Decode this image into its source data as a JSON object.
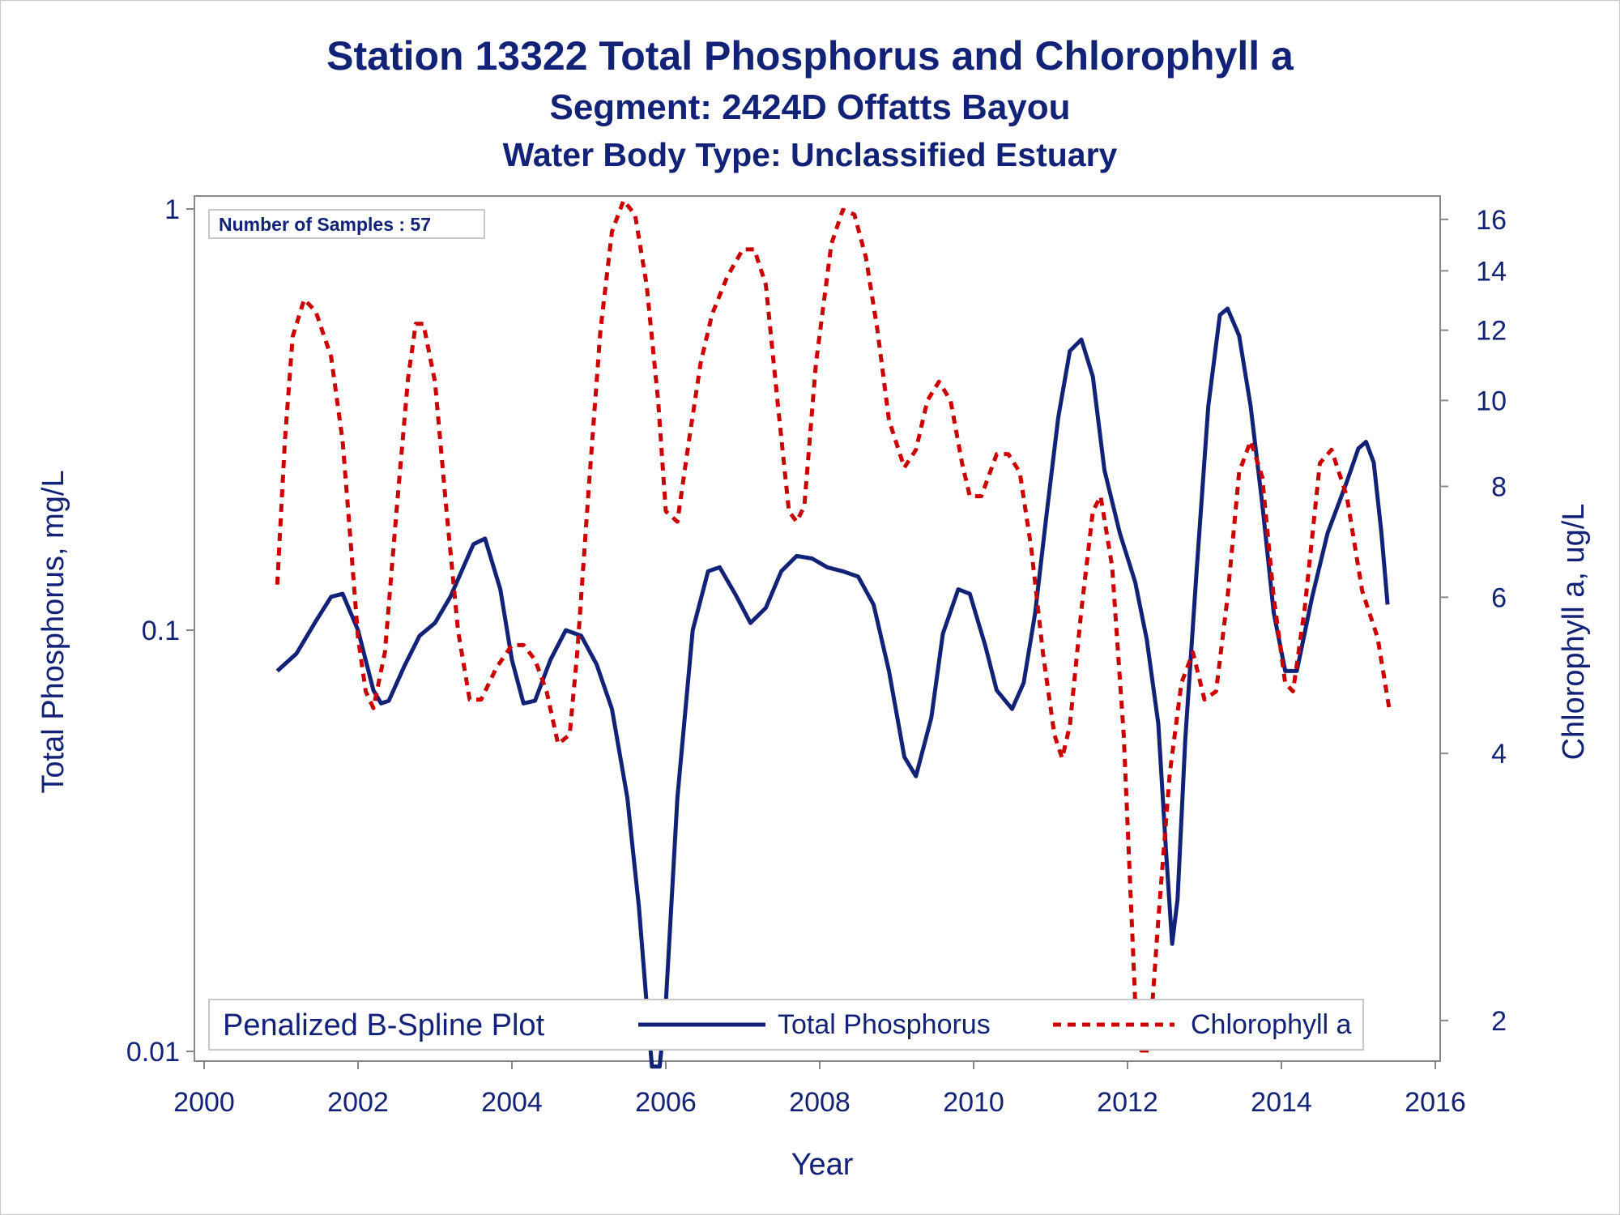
{
  "chart_data": {
    "type": "line",
    "title": "Station 13322  Total Phosphorus and Chlorophyll a",
    "subtitle": "Segment: 2424D  Offatts Bayou",
    "subtitle2": "Water Body Type: Unclassified Estuary",
    "xlabel": "Year",
    "ylabel_left": "Total Phosphorus, mg/L",
    "ylabel_right": "Chlorophyll a, ug/L",
    "xlim": [
      2000,
      2016
    ],
    "x_ticks": [
      "2000",
      "2002",
      "2004",
      "2006",
      "2008",
      "2010",
      "2012",
      "2014",
      "2016"
    ],
    "y_left_scale": "log",
    "y_left_lim": [
      0.01,
      1
    ],
    "y_left_ticks": [
      "0.01",
      "0.1",
      "1"
    ],
    "y_right_scale": "log",
    "y_right_lim": [
      1.8,
      17
    ],
    "y_right_ticks": [
      "2",
      "4",
      "6",
      "8",
      "10",
      "12",
      "14",
      "16"
    ],
    "annotation": "Number of Samples : 57",
    "legend_title": "Penalized B-Spline Plot",
    "legend_position": "bottom-inside",
    "grid": false,
    "series": [
      {
        "name": "Total Phosphorus",
        "axis": "left",
        "color": "#112277",
        "style": "solid",
        "points": [
          [
            2000.95,
            0.08
          ],
          [
            2001.2,
            0.088
          ],
          [
            2001.45,
            0.105
          ],
          [
            2001.65,
            0.12
          ],
          [
            2001.8,
            0.122
          ],
          [
            2002.0,
            0.1
          ],
          [
            2002.2,
            0.072
          ],
          [
            2002.3,
            0.067
          ],
          [
            2002.4,
            0.068
          ],
          [
            2002.6,
            0.082
          ],
          [
            2002.8,
            0.097
          ],
          [
            2003.0,
            0.104
          ],
          [
            2003.2,
            0.12
          ],
          [
            2003.5,
            0.16
          ],
          [
            2003.65,
            0.165
          ],
          [
            2003.85,
            0.125
          ],
          [
            2004.0,
            0.085
          ],
          [
            2004.15,
            0.067
          ],
          [
            2004.3,
            0.068
          ],
          [
            2004.5,
            0.085
          ],
          [
            2004.7,
            0.1
          ],
          [
            2004.9,
            0.097
          ],
          [
            2005.1,
            0.083
          ],
          [
            2005.3,
            0.065
          ],
          [
            2005.5,
            0.04
          ],
          [
            2005.65,
            0.022
          ],
          [
            2005.75,
            0.013
          ],
          [
            2005.82,
            0.0092
          ],
          [
            2005.92,
            0.0092
          ],
          [
            2006.0,
            0.013
          ],
          [
            2006.15,
            0.04
          ],
          [
            2006.35,
            0.1
          ],
          [
            2006.55,
            0.138
          ],
          [
            2006.7,
            0.141
          ],
          [
            2006.9,
            0.122
          ],
          [
            2007.1,
            0.104
          ],
          [
            2007.3,
            0.113
          ],
          [
            2007.5,
            0.138
          ],
          [
            2007.7,
            0.15
          ],
          [
            2007.9,
            0.148
          ],
          [
            2008.1,
            0.141
          ],
          [
            2008.3,
            0.138
          ],
          [
            2008.5,
            0.134
          ],
          [
            2008.7,
            0.115
          ],
          [
            2008.9,
            0.08
          ],
          [
            2009.1,
            0.05
          ],
          [
            2009.25,
            0.045
          ],
          [
            2009.45,
            0.062
          ],
          [
            2009.6,
            0.098
          ],
          [
            2009.8,
            0.125
          ],
          [
            2009.95,
            0.122
          ],
          [
            2010.15,
            0.092
          ],
          [
            2010.3,
            0.072
          ],
          [
            2010.5,
            0.065
          ],
          [
            2010.65,
            0.075
          ],
          [
            2010.8,
            0.11
          ],
          [
            2010.95,
            0.19
          ],
          [
            2011.1,
            0.32
          ],
          [
            2011.25,
            0.46
          ],
          [
            2011.4,
            0.49
          ],
          [
            2011.55,
            0.4
          ],
          [
            2011.7,
            0.24
          ],
          [
            2011.9,
            0.17
          ],
          [
            2012.1,
            0.13
          ],
          [
            2012.25,
            0.095
          ],
          [
            2012.4,
            0.06
          ],
          [
            2012.5,
            0.03
          ],
          [
            2012.58,
            0.018
          ],
          [
            2012.65,
            0.023
          ],
          [
            2012.75,
            0.055
          ],
          [
            2012.9,
            0.14
          ],
          [
            2013.05,
            0.34
          ],
          [
            2013.2,
            0.56
          ],
          [
            2013.3,
            0.58
          ],
          [
            2013.45,
            0.5
          ],
          [
            2013.6,
            0.34
          ],
          [
            2013.75,
            0.2
          ],
          [
            2013.9,
            0.11
          ],
          [
            2014.05,
            0.08
          ],
          [
            2014.2,
            0.08
          ],
          [
            2014.4,
            0.12
          ],
          [
            2014.6,
            0.17
          ],
          [
            2014.85,
            0.225
          ],
          [
            2015.0,
            0.27
          ],
          [
            2015.1,
            0.28
          ],
          [
            2015.2,
            0.25
          ],
          [
            2015.3,
            0.17
          ],
          [
            2015.38,
            0.115
          ]
        ]
      },
      {
        "name": "Chlorophyll a",
        "axis": "right",
        "color": "#cc0000",
        "style": "dashed",
        "points": [
          [
            2000.95,
            6.2
          ],
          [
            2001.05,
            9.0
          ],
          [
            2001.15,
            11.8
          ],
          [
            2001.3,
            13.0
          ],
          [
            2001.45,
            12.6
          ],
          [
            2001.65,
            11.2
          ],
          [
            2001.8,
            9.0
          ],
          [
            2001.9,
            7.0
          ],
          [
            2002.0,
            5.4
          ],
          [
            2002.1,
            4.7
          ],
          [
            2002.2,
            4.5
          ],
          [
            2002.35,
            5.2
          ],
          [
            2002.5,
            7.5
          ],
          [
            2002.65,
            10.6
          ],
          [
            2002.75,
            12.2
          ],
          [
            2002.85,
            12.2
          ],
          [
            2003.0,
            10.5
          ],
          [
            2003.15,
            7.5
          ],
          [
            2003.3,
            5.5
          ],
          [
            2003.45,
            4.6
          ],
          [
            2003.6,
            4.6
          ],
          [
            2003.8,
            5.0
          ],
          [
            2004.0,
            5.3
          ],
          [
            2004.15,
            5.3
          ],
          [
            2004.3,
            5.1
          ],
          [
            2004.45,
            4.7
          ],
          [
            2004.6,
            4.1
          ],
          [
            2004.75,
            4.2
          ],
          [
            2004.85,
            5.2
          ],
          [
            2005.0,
            8.0
          ],
          [
            2005.15,
            12.0
          ],
          [
            2005.3,
            15.5
          ],
          [
            2005.45,
            16.8
          ],
          [
            2005.6,
            16.2
          ],
          [
            2005.75,
            13.5
          ],
          [
            2005.9,
            10.0
          ],
          [
            2006.0,
            7.5
          ],
          [
            2006.15,
            7.3
          ],
          [
            2006.3,
            9.0
          ],
          [
            2006.45,
            11.0
          ],
          [
            2006.6,
            12.5
          ],
          [
            2006.8,
            13.8
          ],
          [
            2007.0,
            14.8
          ],
          [
            2007.15,
            14.8
          ],
          [
            2007.3,
            13.5
          ],
          [
            2007.45,
            10.0
          ],
          [
            2007.6,
            7.5
          ],
          [
            2007.7,
            7.3
          ],
          [
            2007.8,
            7.6
          ],
          [
            2007.95,
            11.0
          ],
          [
            2008.15,
            15.0
          ],
          [
            2008.3,
            16.4
          ],
          [
            2008.45,
            16.2
          ],
          [
            2008.6,
            14.5
          ],
          [
            2008.75,
            12.0
          ],
          [
            2008.9,
            9.5
          ],
          [
            2009.1,
            8.4
          ],
          [
            2009.25,
            8.8
          ],
          [
            2009.4,
            10.0
          ],
          [
            2009.55,
            10.5
          ],
          [
            2009.7,
            10.0
          ],
          [
            2009.85,
            8.5
          ],
          [
            2009.95,
            7.8
          ],
          [
            2010.1,
            7.8
          ],
          [
            2010.3,
            8.7
          ],
          [
            2010.45,
            8.7
          ],
          [
            2010.6,
            8.3
          ],
          [
            2010.75,
            6.8
          ],
          [
            2010.9,
            5.2
          ],
          [
            2011.05,
            4.2
          ],
          [
            2011.15,
            3.95
          ],
          [
            2011.25,
            4.3
          ],
          [
            2011.4,
            5.8
          ],
          [
            2011.55,
            7.5
          ],
          [
            2011.65,
            7.8
          ],
          [
            2011.8,
            6.5
          ],
          [
            2011.95,
            4.2
          ],
          [
            2012.1,
            2.1
          ],
          [
            2012.18,
            1.85
          ],
          [
            2012.28,
            1.85
          ],
          [
            2012.4,
            2.6
          ],
          [
            2012.55,
            3.8
          ],
          [
            2012.7,
            4.8
          ],
          [
            2012.85,
            5.2
          ],
          [
            2013.0,
            4.6
          ],
          [
            2013.15,
            4.7
          ],
          [
            2013.3,
            6.0
          ],
          [
            2013.45,
            8.3
          ],
          [
            2013.6,
            9.0
          ],
          [
            2013.75,
            8.2
          ],
          [
            2013.9,
            6.0
          ],
          [
            2014.05,
            4.8
          ],
          [
            2014.15,
            4.7
          ],
          [
            2014.3,
            5.8
          ],
          [
            2014.5,
            8.5
          ],
          [
            2014.65,
            8.8
          ],
          [
            2014.85,
            7.8
          ],
          [
            2015.05,
            6.1
          ],
          [
            2015.25,
            5.4
          ],
          [
            2015.4,
            4.5
          ]
        ]
      }
    ]
  }
}
